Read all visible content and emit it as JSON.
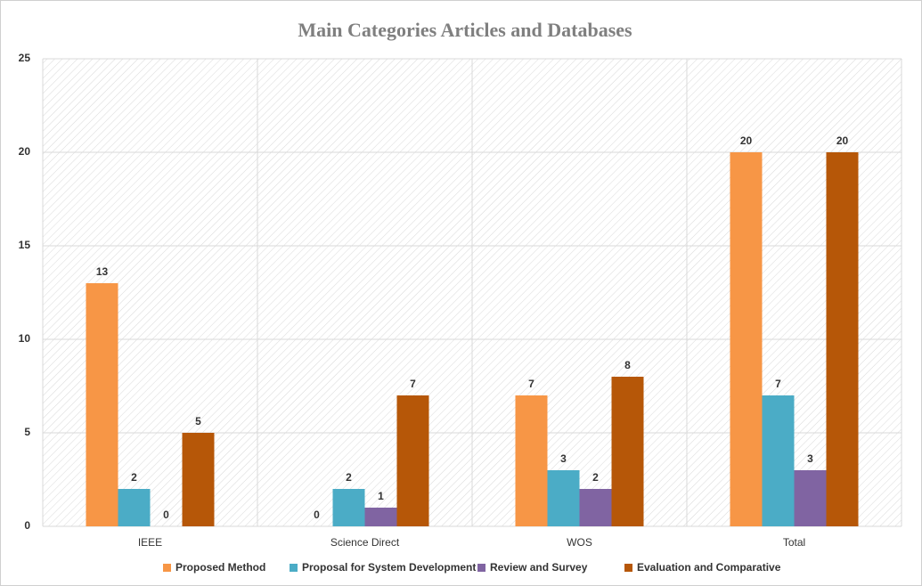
{
  "chart_data": {
    "type": "bar",
    "title": "Main Categories Articles and Databases",
    "categories": [
      "IEEE",
      "Science Direct",
      "WOS",
      "Total"
    ],
    "series": [
      {
        "name": "Proposed Method",
        "color": "#f79646",
        "values": [
          13,
          0,
          7,
          20
        ]
      },
      {
        "name": "Proposal for System Development",
        "color": "#4bacc6",
        "values": [
          2,
          2,
          3,
          7
        ]
      },
      {
        "name": "Review and Survey",
        "color": "#8064a2",
        "values": [
          0,
          1,
          2,
          3
        ]
      },
      {
        "name": "Evaluation and Comparative",
        "color": "#b65708",
        "values": [
          5,
          7,
          8,
          20
        ]
      }
    ],
    "ylim": [
      0,
      25
    ],
    "yticks": [
      0,
      5,
      10,
      15,
      20,
      25
    ],
    "grid": true,
    "legend": "bottom"
  }
}
